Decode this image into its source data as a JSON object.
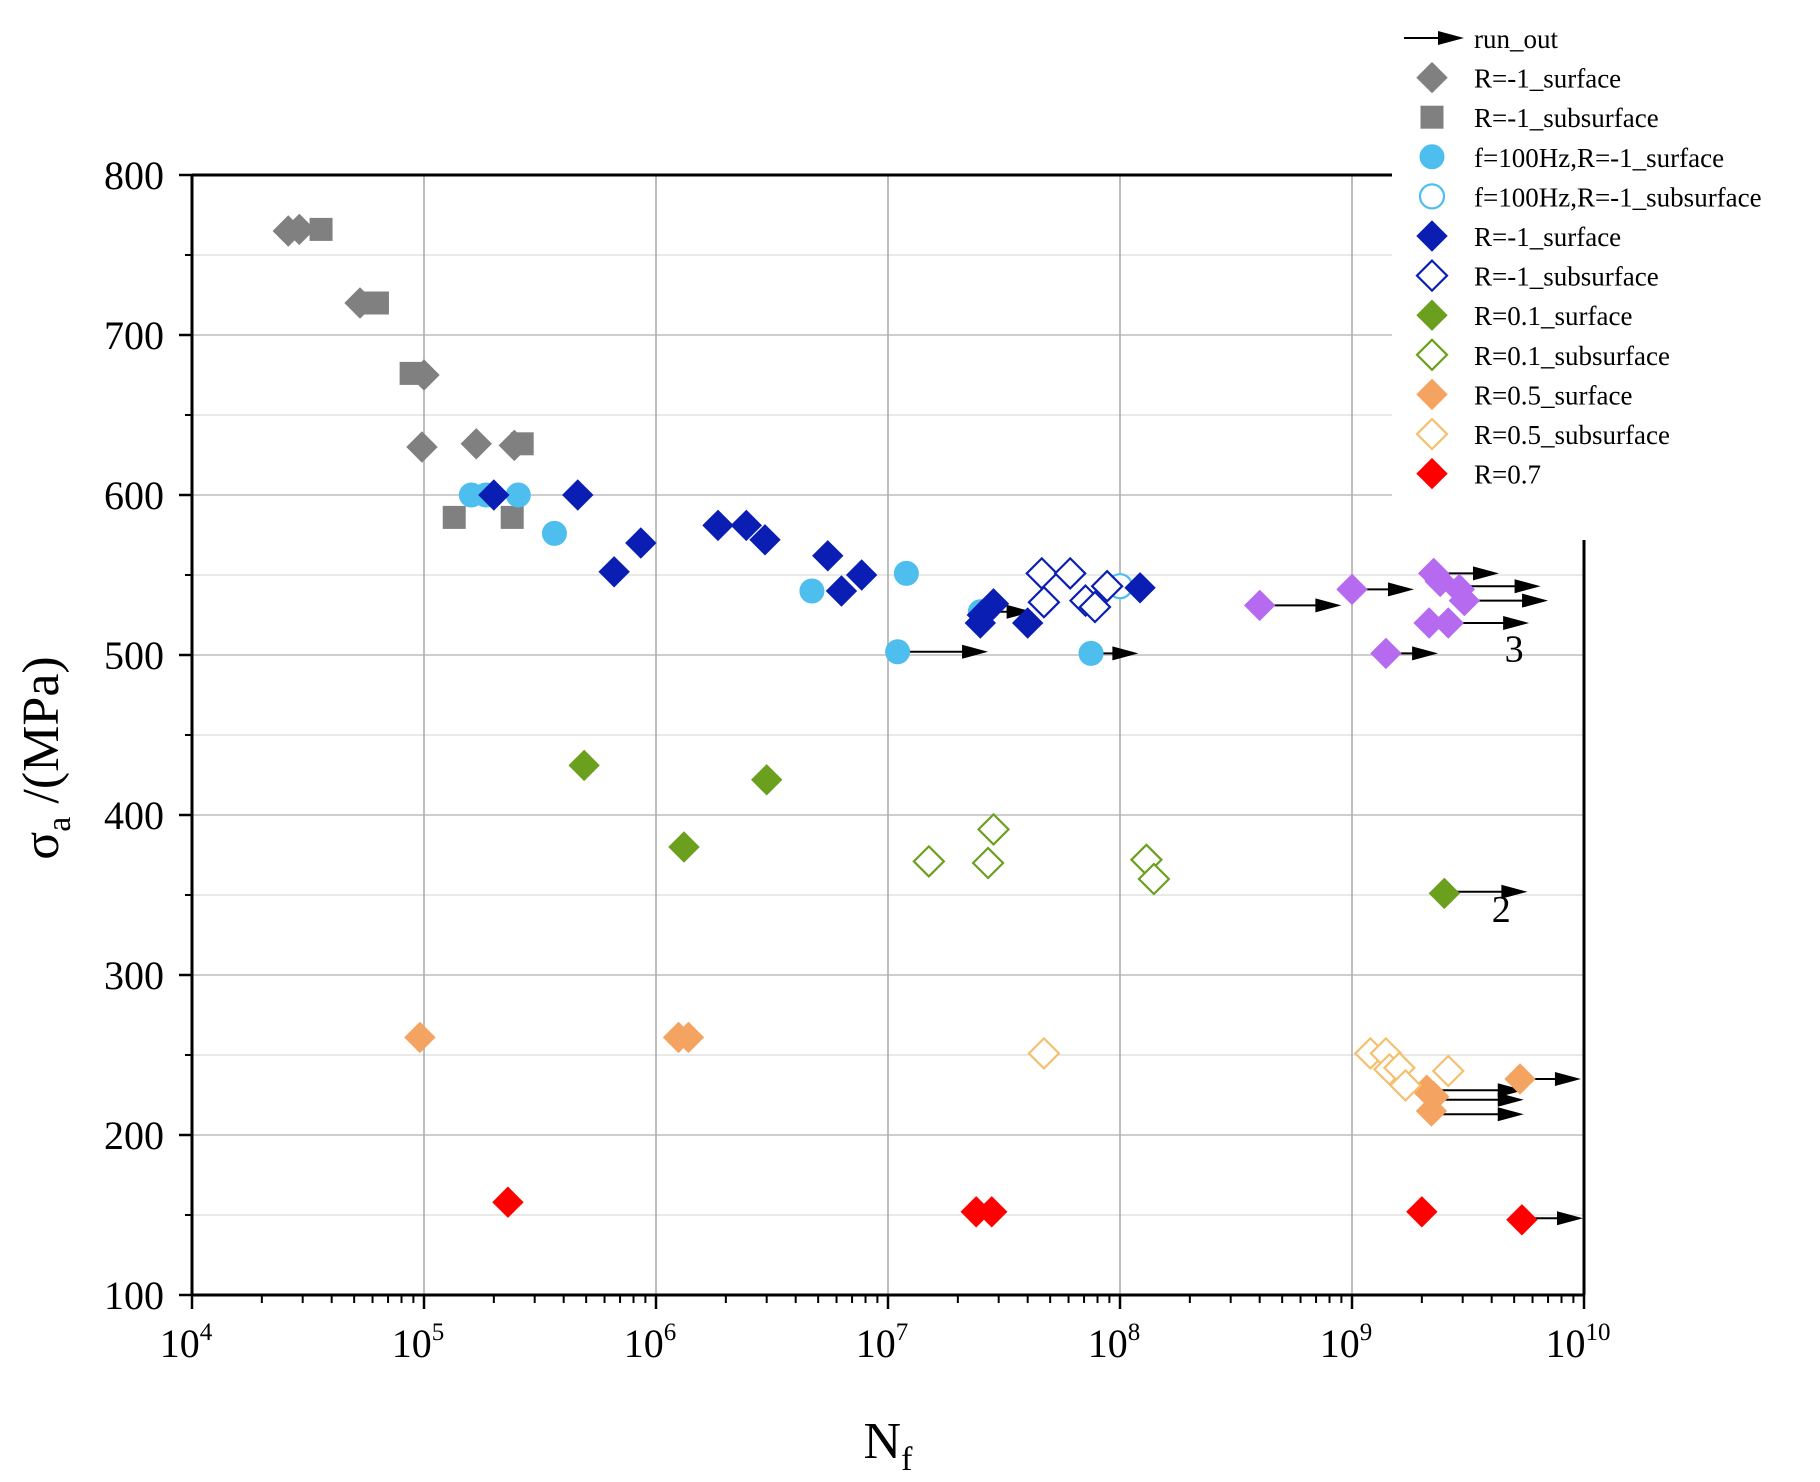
{
  "chart_data": {
    "type": "scatter",
    "xscale": "log",
    "xlim": [
      10000,
      10000000000
    ],
    "ylim": [
      100,
      800
    ],
    "ylabel": "σa /(MPa)",
    "ylabel_main": "σ",
    "ylabel_sub": "a",
    "ylabel_rest": " /(MPa)",
    "xlabel": "Nf",
    "xlabel_main": "N",
    "xlabel_sub": "f",
    "grid": true,
    "legend_position": "top-right",
    "yticks": [
      100,
      200,
      300,
      400,
      500,
      600,
      700,
      800
    ],
    "xticks": [
      {
        "base": "10",
        "exp": "4",
        "value": 10000
      },
      {
        "base": "10",
        "exp": "5",
        "value": 100000
      },
      {
        "base": "10",
        "exp": "6",
        "value": 1000000
      },
      {
        "base": "10",
        "exp": "7",
        "value": 10000000
      },
      {
        "base": "10",
        "exp": "8",
        "value": 100000000
      },
      {
        "base": "10",
        "exp": "9",
        "value": 1000000000
      },
      {
        "base": "10",
        "exp": "10",
        "value": 10000000000
      }
    ],
    "runout_label": "run_out",
    "series": [
      {
        "name": "R=-1_surface",
        "marker": "diamond",
        "filled": true,
        "color": "#808080",
        "points": [
          [
            26000,
            765
          ],
          [
            29000,
            766
          ],
          [
            53000,
            720
          ],
          [
            100000,
            675
          ],
          [
            98000,
            630
          ],
          [
            168000,
            632
          ],
          [
            245000,
            631
          ]
        ]
      },
      {
        "name": "R=-1_subsurface",
        "marker": "square",
        "filled": true,
        "color": "#808080",
        "points": [
          [
            36000,
            766
          ],
          [
            57000,
            720
          ],
          [
            63000,
            720
          ],
          [
            88000,
            676
          ],
          [
            135000,
            586
          ],
          [
            240000,
            586
          ],
          [
            265000,
            632
          ]
        ]
      },
      {
        "name": "f=100Hz,R=-1_surface",
        "marker": "circle",
        "filled": true,
        "color": "#4DBEEE",
        "points": [
          [
            160000,
            600
          ],
          [
            185000,
            600
          ],
          [
            255000,
            600
          ],
          [
            365000,
            576
          ],
          [
            4700000,
            540
          ],
          [
            11000000,
            502
          ],
          [
            12000000,
            551
          ],
          [
            25000000,
            527
          ],
          [
            75000000,
            501
          ]
        ]
      },
      {
        "name": "f=100Hz,R=-1_subsurface",
        "marker": "circle",
        "filled": false,
        "color": "#4DBEEE",
        "points": [
          [
            100000000,
            543
          ]
        ]
      },
      {
        "name": "R=-1_surface",
        "marker": "diamond",
        "filled": true,
        "color": "#0A1EB4",
        "points": [
          [
            200000,
            600
          ],
          [
            460000,
            600
          ],
          [
            660000,
            552
          ],
          [
            860000,
            570
          ],
          [
            1850000,
            581
          ],
          [
            2450000,
            581
          ],
          [
            2950000,
            572
          ],
          [
            5500000,
            562
          ],
          [
            6300000,
            540
          ],
          [
            7700000,
            550
          ],
          [
            25000000,
            520
          ],
          [
            25500000,
            525
          ],
          [
            28500000,
            532
          ],
          [
            40000000,
            520
          ],
          [
            122000000,
            542
          ]
        ]
      },
      {
        "name": "R=-1_subsurface",
        "marker": "diamond",
        "filled": false,
        "color": "#0A1EB4",
        "points": [
          [
            46000000,
            551
          ],
          [
            47000000,
            533
          ],
          [
            61000000,
            551
          ],
          [
            71000000,
            534
          ],
          [
            78000000,
            530
          ],
          [
            88000000,
            543
          ]
        ]
      },
      {
        "name": "R=0.1_surface",
        "marker": "diamond",
        "filled": true,
        "color": "#6BA01E",
        "points": [
          [
            490000,
            431
          ],
          [
            1320000,
            380
          ],
          [
            3000000,
            422
          ],
          [
            2500000000,
            351
          ]
        ]
      },
      {
        "name": "R=0.1_subsurface",
        "marker": "diamond",
        "filled": false,
        "color": "#6BA01E",
        "points": [
          [
            15000000,
            371
          ],
          [
            27000000,
            370
          ],
          [
            28500000,
            391
          ],
          [
            130000000,
            372
          ],
          [
            140000000,
            360
          ]
        ]
      },
      {
        "name": "R=0.5_surface",
        "marker": "diamond",
        "filled": true,
        "color": "#F4A460",
        "points": [
          [
            96000,
            261
          ],
          [
            1250000,
            261
          ],
          [
            1380000,
            261
          ],
          [
            2100000000,
            228
          ],
          [
            2250000000,
            224
          ],
          [
            2200000000,
            215
          ],
          [
            5300000000,
            235
          ]
        ]
      },
      {
        "name": "R=0.5_subsurface",
        "marker": "diamond",
        "filled": false,
        "color": "#F5C06E",
        "points": [
          [
            47000000,
            251
          ],
          [
            1200000000,
            251
          ],
          [
            1400000000,
            251
          ],
          [
            1450000000,
            241
          ],
          [
            1600000000,
            242
          ],
          [
            1700000000,
            231
          ],
          [
            2600000000,
            240
          ]
        ]
      },
      {
        "name": "R=0.7",
        "marker": "diamond",
        "filled": true,
        "color": "#FF0000",
        "points": [
          [
            230000,
            158
          ],
          [
            24000000,
            152
          ],
          [
            28000000,
            152
          ],
          [
            2000000000,
            152
          ],
          [
            5400000000,
            147
          ]
        ]
      },
      {
        "name": "",
        "marker": "diamond",
        "filled": true,
        "color": "#B56AF0",
        "in_legend": false,
        "points": [
          [
            400000000,
            531
          ],
          [
            1000000000,
            541
          ],
          [
            1400000000,
            501
          ],
          [
            2150000000,
            520
          ],
          [
            2250000000,
            551
          ],
          [
            2400000000,
            546
          ],
          [
            2600000000,
            520
          ],
          [
            2900000000,
            541
          ],
          [
            3050000000,
            534
          ]
        ]
      }
    ],
    "runouts": [
      {
        "from": [
          28000000,
          527
        ],
        "to": [
          42000000,
          527
        ]
      },
      {
        "from": [
          11000000,
          502
        ],
        "to": [
          27000000,
          502
        ]
      },
      {
        "from": [
          75000000,
          501
        ],
        "to": [
          120000000,
          501
        ]
      },
      {
        "from": [
          400000000,
          531
        ],
        "to": [
          900000000,
          531
        ]
      },
      {
        "from": [
          1000000000,
          541
        ],
        "to": [
          1850000000,
          541
        ]
      },
      {
        "from": [
          1400000000,
          501
        ],
        "to": [
          2350000000,
          501
        ]
      },
      {
        "from": [
          2250000000,
          551
        ],
        "to": [
          4300000000,
          551
        ]
      },
      {
        "from": [
          2400000000,
          543
        ],
        "to": [
          6500000000,
          543
        ]
      },
      {
        "from": [
          2600000000,
          520
        ],
        "to": [
          5800000000,
          520
        ]
      },
      {
        "from": [
          3050000000,
          534
        ],
        "to": [
          7000000000,
          534
        ]
      },
      {
        "from": [
          2500000000,
          352
        ],
        "to": [
          5700000000,
          352
        ]
      },
      {
        "from": [
          2100000000,
          228
        ],
        "to": [
          5500000000,
          228
        ]
      },
      {
        "from": [
          2250000000,
          222
        ],
        "to": [
          5500000000,
          222
        ]
      },
      {
        "from": [
          2200000000,
          213
        ],
        "to": [
          5500000000,
          213
        ]
      },
      {
        "from": [
          5300000000,
          235
        ],
        "to": [
          9700000000,
          235
        ]
      },
      {
        "from": [
          5400000000,
          148
        ],
        "to": [
          9900000000,
          148
        ]
      }
    ],
    "annotations": [
      {
        "text": "3",
        "x": 5000000000,
        "y": 496
      },
      {
        "text": "2",
        "x": 4400000000,
        "y": 333
      }
    ]
  }
}
